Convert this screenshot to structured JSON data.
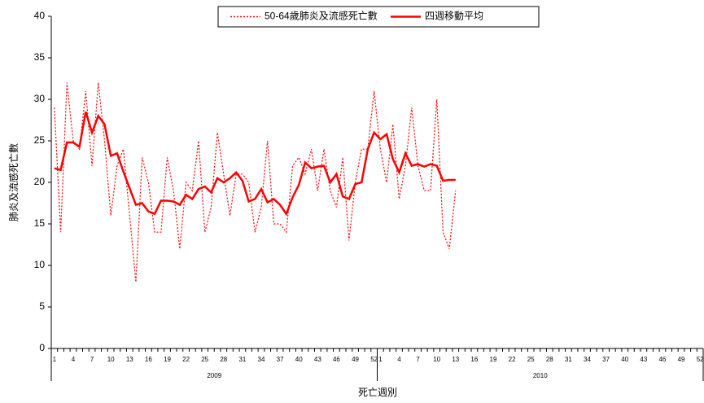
{
  "chart_data": {
    "type": "line",
    "y_label": "肺炎及流感死亡數",
    "x_label": "死亡週別",
    "categories": [
      "1",
      null,
      null,
      "4",
      null,
      null,
      "7",
      null,
      null,
      "10",
      null,
      null,
      "13",
      null,
      null,
      "16",
      null,
      null,
      "19",
      null,
      null,
      "22",
      null,
      null,
      "25",
      null,
      null,
      "28",
      null,
      null,
      "31",
      null,
      null,
      "34",
      null,
      null,
      "37",
      null,
      null,
      "40",
      null,
      null,
      "43",
      null,
      null,
      "46",
      null,
      null,
      "49",
      null,
      null,
      "52",
      "1",
      null,
      null,
      "4",
      null,
      null,
      "7",
      null,
      null,
      "10",
      null,
      null,
      "13",
      null,
      null,
      "16",
      null,
      null,
      "19",
      null,
      null,
      "22",
      null,
      null,
      "25",
      null,
      null,
      "28",
      null,
      null,
      "31",
      null,
      null,
      "34",
      null,
      null,
      "37",
      null,
      null,
      "40",
      null,
      null,
      "43",
      null,
      null,
      "46",
      null,
      null,
      "49",
      null,
      null,
      "52"
    ],
    "x_groups": [
      "2009",
      "2010"
    ],
    "series": [
      {
        "name": "50-64歲肺炎及流感死亡數",
        "color": "#ff0000",
        "dash": true,
        "values": [
          29,
          14,
          32,
          25,
          24,
          31,
          22,
          32,
          25,
          16,
          22,
          24,
          16,
          8,
          23,
          20,
          14,
          14,
          23,
          19,
          12,
          20,
          19,
          25,
          14,
          17,
          26,
          21,
          16,
          21,
          21,
          20,
          14,
          17,
          25,
          15,
          15,
          14,
          22,
          23,
          21,
          24,
          19,
          24,
          19,
          17,
          23,
          13,
          20,
          24,
          24,
          31,
          24,
          20,
          27,
          18,
          22,
          29,
          22,
          19,
          19,
          30,
          14,
          12,
          19,
          null,
          null,
          null,
          null,
          null,
          null,
          null,
          null,
          null,
          null,
          null,
          null,
          null,
          null,
          null,
          null,
          null,
          null,
          null,
          null,
          null,
          null,
          null,
          null,
          null,
          null,
          null,
          null,
          null,
          null,
          null,
          null,
          null,
          null,
          null,
          null,
          null,
          null,
          null
        ]
      },
      {
        "name": "四週移動平均",
        "color": "#ff0000",
        "dash": false,
        "values": [
          21.7,
          21.5,
          24.8,
          24.8,
          24.3,
          28.5,
          26,
          28,
          27,
          23.2,
          23.5,
          21.3,
          19.3,
          17.3,
          17.5,
          16.5,
          16.2,
          17.8,
          17.8,
          17.7,
          17.3,
          18.5,
          18,
          19.2,
          19.5,
          18.8,
          20.5,
          20,
          20.5,
          21.2,
          20.2,
          17.7,
          18,
          19.2,
          17.6,
          18,
          17.3,
          16.2,
          18.2,
          19.7,
          22.4,
          21.7,
          21.9,
          22,
          20,
          21,
          18.3,
          18,
          19.8,
          20,
          24,
          26,
          25.2,
          25.8,
          22.8,
          21.2,
          23.5,
          22,
          22.2,
          21.9,
          22.2,
          22,
          20.2,
          20.3,
          20.3,
          null,
          null,
          null,
          null,
          null,
          null,
          null,
          null,
          null,
          null,
          null,
          null,
          null,
          null,
          null,
          null,
          null,
          null,
          null,
          null,
          null,
          null,
          null,
          null,
          null,
          null,
          null,
          null,
          null,
          null,
          null,
          null,
          null,
          null,
          null,
          null,
          null,
          null,
          null
        ]
      }
    ],
    "ylim": [
      0,
      40
    ],
    "yticks": [
      0,
      5,
      10,
      15,
      20,
      25,
      30,
      35,
      40
    ],
    "legend": "top"
  }
}
